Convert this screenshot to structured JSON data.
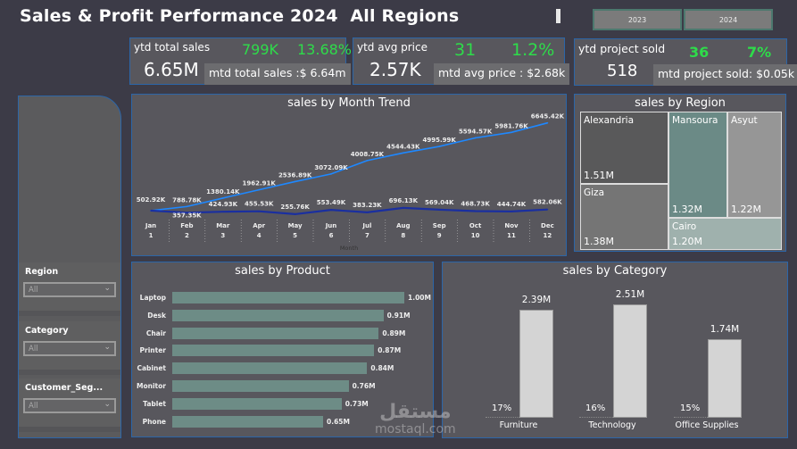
{
  "header": {
    "title": "Sales & Profit Performance 2024  All Regions",
    "years": [
      "2023",
      "2024"
    ]
  },
  "kpis": [
    {
      "label": "ytd total sales",
      "value": "6.65M",
      "delta": "799K",
      "pct": "13.68%",
      "mtd": "mtd total sales :$ 6.64m"
    },
    {
      "label": "ytd avg price",
      "value": "2.57K",
      "delta": "31",
      "pct": "1.2%",
      "mtd": "mtd avg price : $2.68k"
    },
    {
      "label": "ytd project sold",
      "value": "518",
      "delta": "36",
      "pct": "7%",
      "mtd": "mtd project sold: $0.05k"
    }
  ],
  "filters": [
    {
      "label": "Region",
      "value": "All"
    },
    {
      "label": "Category",
      "value": "All"
    },
    {
      "label": "Customer_Seg...",
      "value": "All"
    }
  ],
  "colors": {
    "positive": "#2edc4a",
    "cumulative_line": "#1e88ff",
    "monthly_line": "#1a2fa0",
    "product_bar": "#6d8c86",
    "category_bar": "#d4d4d4"
  },
  "chart_data": [
    {
      "type": "line",
      "title": "sales by Month Trend",
      "xlabel": "Month",
      "categories": [
        "Jan",
        "Feb",
        "Mar",
        "Apr",
        "May",
        "Jun",
        "Jul",
        "Aug",
        "Sep",
        "Oct",
        "Nov",
        "Dec"
      ],
      "category_numbers": [
        "1",
        "2",
        "3",
        "4",
        "5",
        "6",
        "7",
        "8",
        "9",
        "10",
        "11",
        "12"
      ],
      "series": [
        {
          "values": [
            502.92,
            788.78,
            1380.14,
            1962.91,
            2536.89,
            3072.09,
            4008.75,
            4544.43,
            4995.99,
            5594.57,
            5981.76,
            6645.42
          ],
          "labels": [
            "502.92K",
            "788.78K",
            "1380.14K",
            "1962.91K",
            "2536.89K",
            "3072.09K",
            "4008.75K",
            "4544.43K",
            "4995.99K",
            "5594.57K",
            "5981.76K",
            "6645.42K"
          ]
        },
        {
          "values": [
            502.92,
            357.35,
            424.93,
            455.53,
            255.76,
            553.49,
            383.23,
            696.13,
            569.04,
            468.73,
            444.74,
            582.06
          ],
          "labels": [
            "",
            "357.35K",
            "424.93K",
            "455.53K",
            "255.76K",
            "553.49K",
            "383.23K",
            "696.13K",
            "569.04K",
            "468.73K",
            "444.74K",
            "582.06K"
          ]
        }
      ]
    },
    {
      "type": "treemap",
      "title": "sales by Region",
      "items": [
        {
          "name": "Alexandria",
          "value": "1.51M",
          "color": "#59595a"
        },
        {
          "name": "Giza",
          "value": "1.38M",
          "color": "#757575"
        },
        {
          "name": "Mansoura",
          "value": "1.32M",
          "color": "#6b8a86"
        },
        {
          "name": "Asyut",
          "value": "1.22M",
          "color": "#969696"
        },
        {
          "name": "Cairo",
          "value": "1.20M",
          "color": "#9fb1ad"
        }
      ]
    },
    {
      "type": "bar",
      "title": "sales by Product",
      "orientation": "horizontal",
      "categories": [
        "Laptop",
        "Desk",
        "Chair",
        "Printer",
        "Cabinet",
        "Monitor",
        "Tablet",
        "Phone"
      ],
      "values": [
        1.0,
        0.91,
        0.89,
        0.87,
        0.84,
        0.76,
        0.73,
        0.65
      ],
      "labels": [
        "1.00M",
        "0.91M",
        "0.89M",
        "0.87M",
        "0.84M",
        "0.76M",
        "0.73M",
        "0.65M"
      ]
    },
    {
      "type": "bar",
      "title": "sales by Category",
      "categories": [
        "Furniture",
        "Technology",
        "Office Supplies"
      ],
      "values": [
        2.39,
        2.51,
        1.74
      ],
      "labels": [
        "2.39M",
        "2.51M",
        "1.74M"
      ],
      "percents": [
        "17%",
        "16%",
        "15%"
      ]
    }
  ],
  "watermark": {
    "arabic": "مستقل",
    "latin": "mostaql.com"
  }
}
